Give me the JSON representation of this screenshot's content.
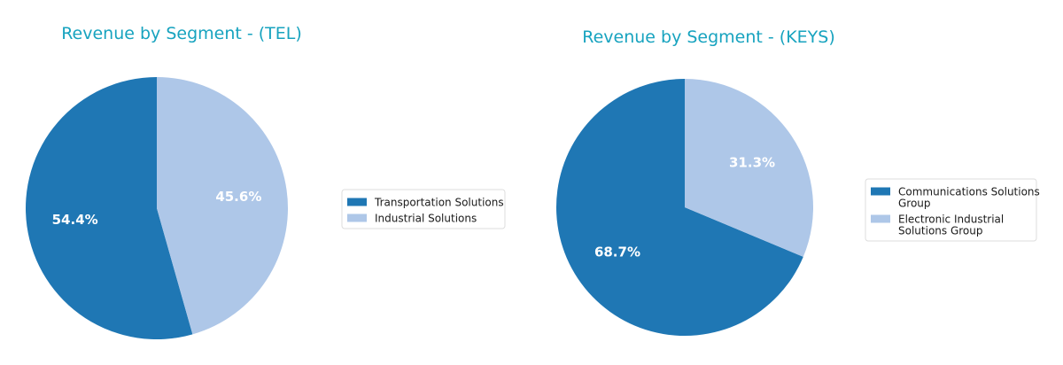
{
  "chart_data": [
    {
      "type": "pie",
      "title": "Revenue by Segment - (TEL)",
      "labels": [
        "Transportation Solutions",
        "Industrial Solutions"
      ],
      "values": [
        54.4,
        45.6
      ],
      "value_labels": [
        "54.4%",
        "45.6%"
      ],
      "colors": [
        "#1f77b4",
        "#aec7e8"
      ],
      "start_angle": 90,
      "direction": "counterclockwise",
      "legend_position": "right"
    },
    {
      "type": "pie",
      "title": "Revenue by Segment - (KEYS)",
      "labels": [
        "Communications Solutions Group",
        "Electronic Industrial Solutions Group"
      ],
      "values": [
        68.7,
        31.3
      ],
      "value_labels": [
        "68.7%",
        "31.3%"
      ],
      "colors": [
        "#1f77b4",
        "#aec7e8"
      ],
      "start_angle": 90,
      "direction": "counterclockwise",
      "legend_position": "right"
    }
  ]
}
